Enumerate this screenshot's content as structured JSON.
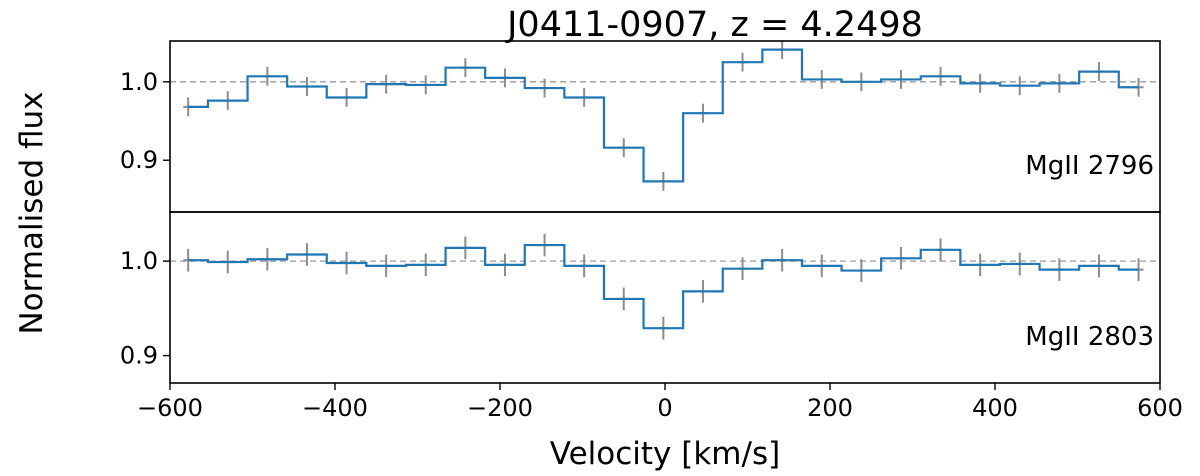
{
  "chart_data": {
    "type": "line",
    "title": "J0411-0907,    z = 4.2498",
    "xlabel": "Velocity [km/s]",
    "ylabel": "Normalised flux",
    "xlim": [
      -600,
      600
    ],
    "x_ticks": [
      -600,
      -400,
      -200,
      0,
      200,
      400,
      600
    ],
    "x_tick_labels": [
      "−600",
      "−400",
      "−200",
      "0",
      "200",
      "400",
      "600"
    ],
    "y_tick_labels": [
      "0.9",
      "1.0"
    ],
    "panels": [
      {
        "label": "MgII 2796",
        "ylim": [
          0.834,
          1.052
        ],
        "y_ticks": [
          0.9,
          1.0
        ],
        "reference_level": 1.0,
        "series": [
          {
            "step": "mid",
            "x": [
              -578,
              -530,
              -482,
              -434,
              -386,
              -338,
              -290,
              -242,
              -194,
              -146,
              -98,
              -50,
              -2,
              46,
              94,
              142,
              190,
              238,
              286,
              334,
              382,
              430,
              478,
              526,
              574
            ],
            "y": [
              0.968,
              0.976,
              1.007,
              0.994,
              0.98,
              0.997,
              0.996,
              1.018,
              1.005,
              0.992,
              0.98,
              0.916,
              0.873,
              0.96,
              1.025,
              1.041,
              1.003,
              1.0,
              1.003,
              1.007,
              0.998,
              0.995,
              0.998,
              1.013,
              0.993
            ],
            "err": [
              0.012,
              0.012,
              0.012,
              0.012,
              0.012,
              0.012,
              0.012,
              0.012,
              0.012,
              0.012,
              0.012,
              0.012,
              0.012,
              0.012,
              0.012,
              0.012,
              0.012,
              0.012,
              0.012,
              0.012,
              0.012,
              0.012,
              0.012,
              0.012,
              0.012
            ]
          }
        ]
      },
      {
        "label": "MgII 2803",
        "ylim": [
          0.871,
          1.052
        ],
        "y_ticks": [
          0.9,
          1.0
        ],
        "reference_level": 1.0,
        "series": [
          {
            "step": "mid",
            "x": [
              -578,
              -530,
              -482,
              -434,
              -386,
              -338,
              -290,
              -242,
              -194,
              -146,
              -98,
              -50,
              -2,
              46,
              94,
              142,
              190,
              238,
              286,
              334,
              382,
              430,
              478,
              526,
              574
            ],
            "y": [
              1.001,
              0.999,
              1.002,
              1.007,
              0.998,
              0.995,
              0.996,
              1.014,
              0.996,
              1.017,
              0.995,
              0.96,
              0.929,
              0.968,
              0.992,
              1.001,
              0.995,
              0.99,
              1.003,
              1.012,
              0.996,
              0.997,
              0.991,
              0.995,
              0.991
            ]
          }
        ],
        "err_placeholder": true
      }
    ]
  }
}
